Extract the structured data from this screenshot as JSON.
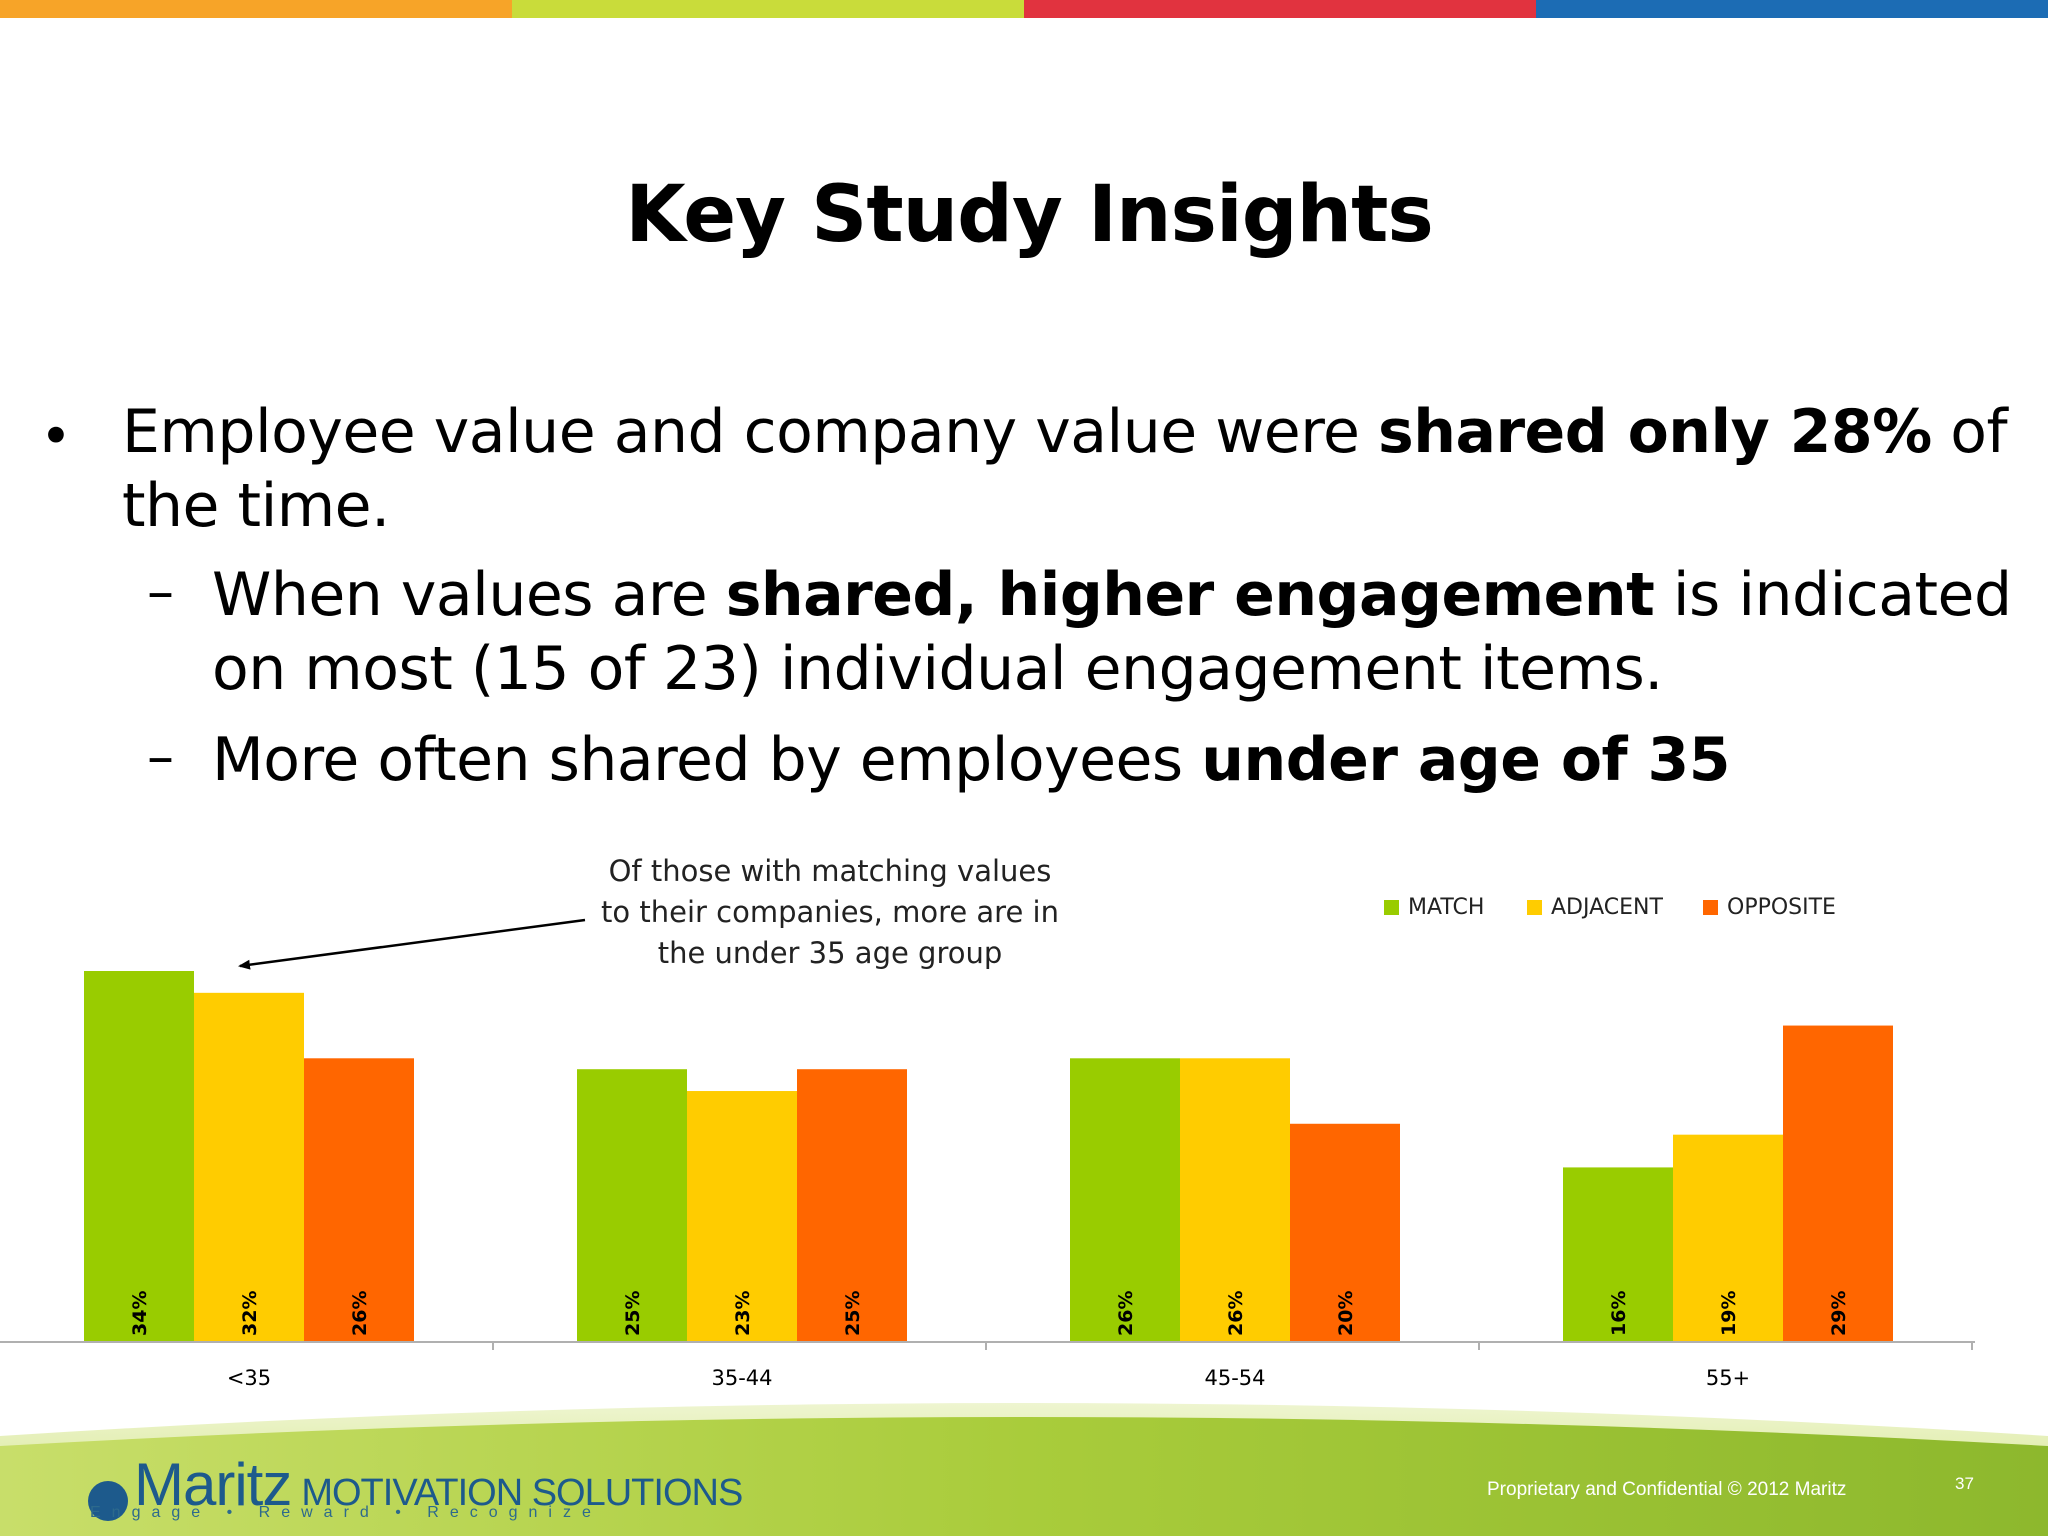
{
  "title": "Key Study Insights",
  "bullets": {
    "b1_line1": [
      "Employee value and company value were ",
      "shared only 28%",
      " of"
    ],
    "b1_line2": "the time.",
    "s1_line1": [
      "When values are ",
      "shared, higher engagement",
      " is indicated"
    ],
    "s1_line2": "on most (15 of 23) individual engagement items.",
    "s2_line1": [
      "More often shared by employees ",
      "under age of 35"
    ],
    "bullet_symbol": "•",
    "dash_symbol": "–"
  },
  "annotation": [
    "Of those with matching values",
    "to their companies, more are in",
    "the under 35 age group"
  ],
  "footer": {
    "brand": "Maritz",
    "brand_sub": "MOTIVATION SOLUTIONS",
    "tagline": "Engage  •  Reward  •  Recognize",
    "confidential": "Proprietary and Confidential © 2012 Maritz",
    "page_number": "37"
  },
  "colors": {
    "match": "#99cc00",
    "adjacent": "#ffcc00",
    "opposite": "#ff6600",
    "stripe": [
      "#f7a428",
      "#c9dc3a",
      "#e1333f",
      "#1c6cb4"
    ]
  },
  "chart_data": {
    "type": "bar",
    "categories": [
      "<35",
      "35-44",
      "45-54",
      "55+"
    ],
    "series": [
      {
        "name": "MATCH",
        "values": [
          34,
          25,
          26,
          16
        ],
        "labels": [
          "34%",
          "25%",
          "26%",
          "16%"
        ]
      },
      {
        "name": "ADJACENT",
        "values": [
          32,
          23,
          26,
          19
        ],
        "labels": [
          "32%",
          "23%",
          "26%",
          "19%"
        ]
      },
      {
        "name": "OPPOSITE",
        "values": [
          26,
          25,
          20,
          29
        ],
        "labels": [
          "26%",
          "25%",
          "20%",
          "29%"
        ]
      }
    ],
    "ylim": [
      0,
      34
    ],
    "legend_position": "top-right",
    "grid": false
  }
}
